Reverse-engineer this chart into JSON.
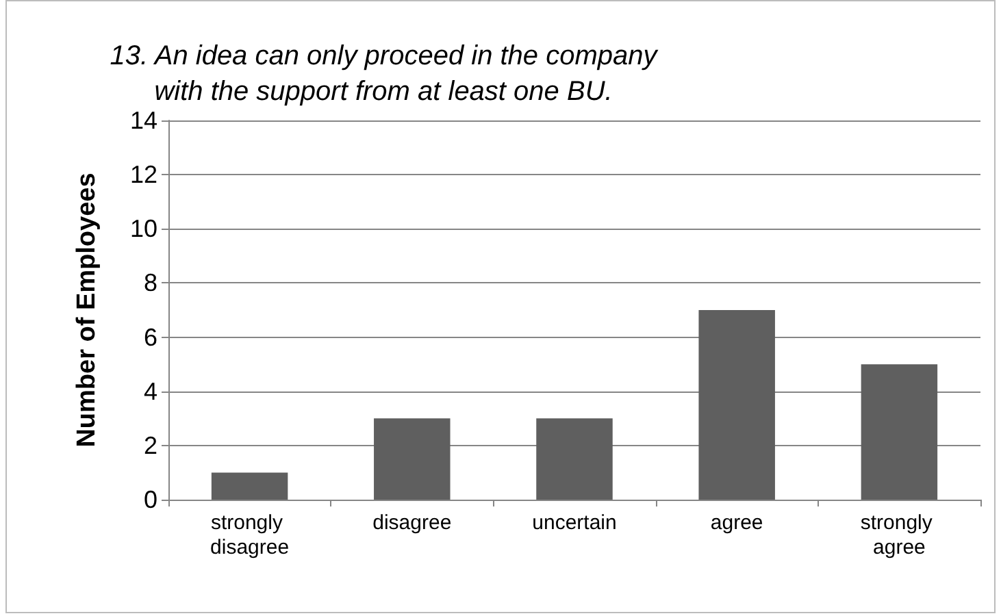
{
  "chart_data": {
    "type": "bar",
    "title": "13. An idea can only proceed in the company\nwith the support from at least one BU.",
    "ylabel": "Number of Employees",
    "categories": [
      "strongly disagree",
      "disagree",
      "uncertain",
      "agree",
      "strongly agree"
    ],
    "values": [
      1,
      3,
      3,
      7,
      5
    ],
    "color": "#5f5f5f",
    "ylim": [
      0,
      14
    ],
    "yticks": [
      0,
      2,
      4,
      6,
      8,
      10,
      12,
      14
    ],
    "grid": "y"
  }
}
